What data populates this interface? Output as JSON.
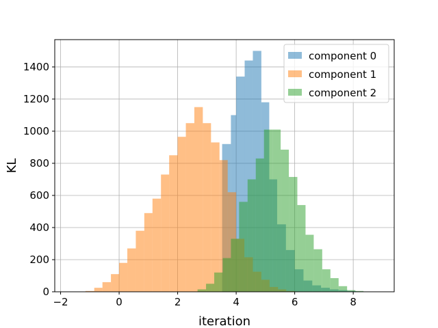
{
  "chart_data": {
    "type": "bar",
    "title": "",
    "xlabel": "iteration",
    "ylabel": "KL",
    "xlim": [
      -2.2,
      9.4
    ],
    "ylim": [
      0,
      1570
    ],
    "xticks": [
      "−2",
      "0",
      "2",
      "4",
      "6",
      "8"
    ],
    "yticks": [
      "0",
      "200",
      "400",
      "600",
      "800",
      "1000",
      "1200",
      "1400"
    ],
    "grid": true,
    "legend_placement": "top-right",
    "series": [
      {
        "name": "component 0",
        "color": "#1f77b4",
        "bins": [
          [
            3.52,
            3.82,
            920
          ],
          [
            3.82,
            4.0,
            1100
          ],
          [
            4.0,
            4.29,
            1340
          ],
          [
            4.29,
            4.57,
            1440
          ],
          [
            4.57,
            4.86,
            1500
          ],
          [
            4.86,
            5.13,
            1180
          ],
          [
            5.13,
            5.4,
            700
          ],
          [
            5.4,
            5.7,
            420
          ],
          [
            5.7,
            6.0,
            260
          ],
          [
            6.0,
            6.3,
            140
          ],
          [
            6.3,
            6.6,
            70
          ],
          [
            6.6,
            6.9,
            40
          ],
          [
            6.9,
            7.2,
            25
          ],
          [
            7.2,
            7.5,
            15
          ],
          [
            7.5,
            7.8,
            10
          ],
          [
            7.8,
            8.1,
            5
          ]
        ]
      },
      {
        "name": "component 1",
        "color": "#ff7f0e",
        "bins": [
          [
            -1.15,
            -0.85,
            5
          ],
          [
            -0.85,
            -0.57,
            25
          ],
          [
            -0.57,
            -0.28,
            60
          ],
          [
            -0.28,
            0.0,
            110
          ],
          [
            0.0,
            0.28,
            180
          ],
          [
            0.28,
            0.57,
            270
          ],
          [
            0.57,
            0.86,
            380
          ],
          [
            0.86,
            1.14,
            490
          ],
          [
            1.14,
            1.43,
            580
          ],
          [
            1.43,
            1.71,
            730
          ],
          [
            1.71,
            2.0,
            850
          ],
          [
            2.0,
            2.28,
            965
          ],
          [
            2.28,
            2.57,
            1050
          ],
          [
            2.57,
            2.86,
            1150
          ],
          [
            2.86,
            3.14,
            1050
          ],
          [
            3.14,
            3.43,
            930
          ],
          [
            3.43,
            3.71,
            820
          ],
          [
            3.71,
            4.0,
            620
          ],
          [
            4.0,
            4.28,
            330
          ],
          [
            4.28,
            4.57,
            215
          ],
          [
            4.57,
            4.86,
            125
          ],
          [
            4.86,
            5.14,
            75
          ],
          [
            5.14,
            5.43,
            30
          ],
          [
            5.43,
            5.71,
            15
          ],
          [
            5.71,
            6.0,
            5
          ]
        ]
      },
      {
        "name": "component 2",
        "color": "#2ca02c",
        "bins": [
          [
            2.68,
            2.97,
            15
          ],
          [
            2.97,
            3.25,
            50
          ],
          [
            3.25,
            3.54,
            120
          ],
          [
            3.54,
            3.82,
            210
          ],
          [
            3.82,
            4.1,
            330
          ],
          [
            4.1,
            4.39,
            560
          ],
          [
            4.39,
            4.67,
            700
          ],
          [
            4.67,
            4.95,
            830
          ],
          [
            4.95,
            5.24,
            1010
          ],
          [
            5.24,
            5.52,
            1010
          ],
          [
            5.52,
            5.8,
            885
          ],
          [
            5.8,
            6.09,
            715
          ],
          [
            6.09,
            6.37,
            540
          ],
          [
            6.37,
            6.65,
            355
          ],
          [
            6.65,
            6.94,
            265
          ],
          [
            6.94,
            7.22,
            140
          ],
          [
            7.22,
            7.5,
            85
          ],
          [
            7.5,
            7.79,
            35
          ],
          [
            7.79,
            8.07,
            10
          ],
          [
            8.07,
            8.35,
            5
          ]
        ]
      }
    ]
  }
}
